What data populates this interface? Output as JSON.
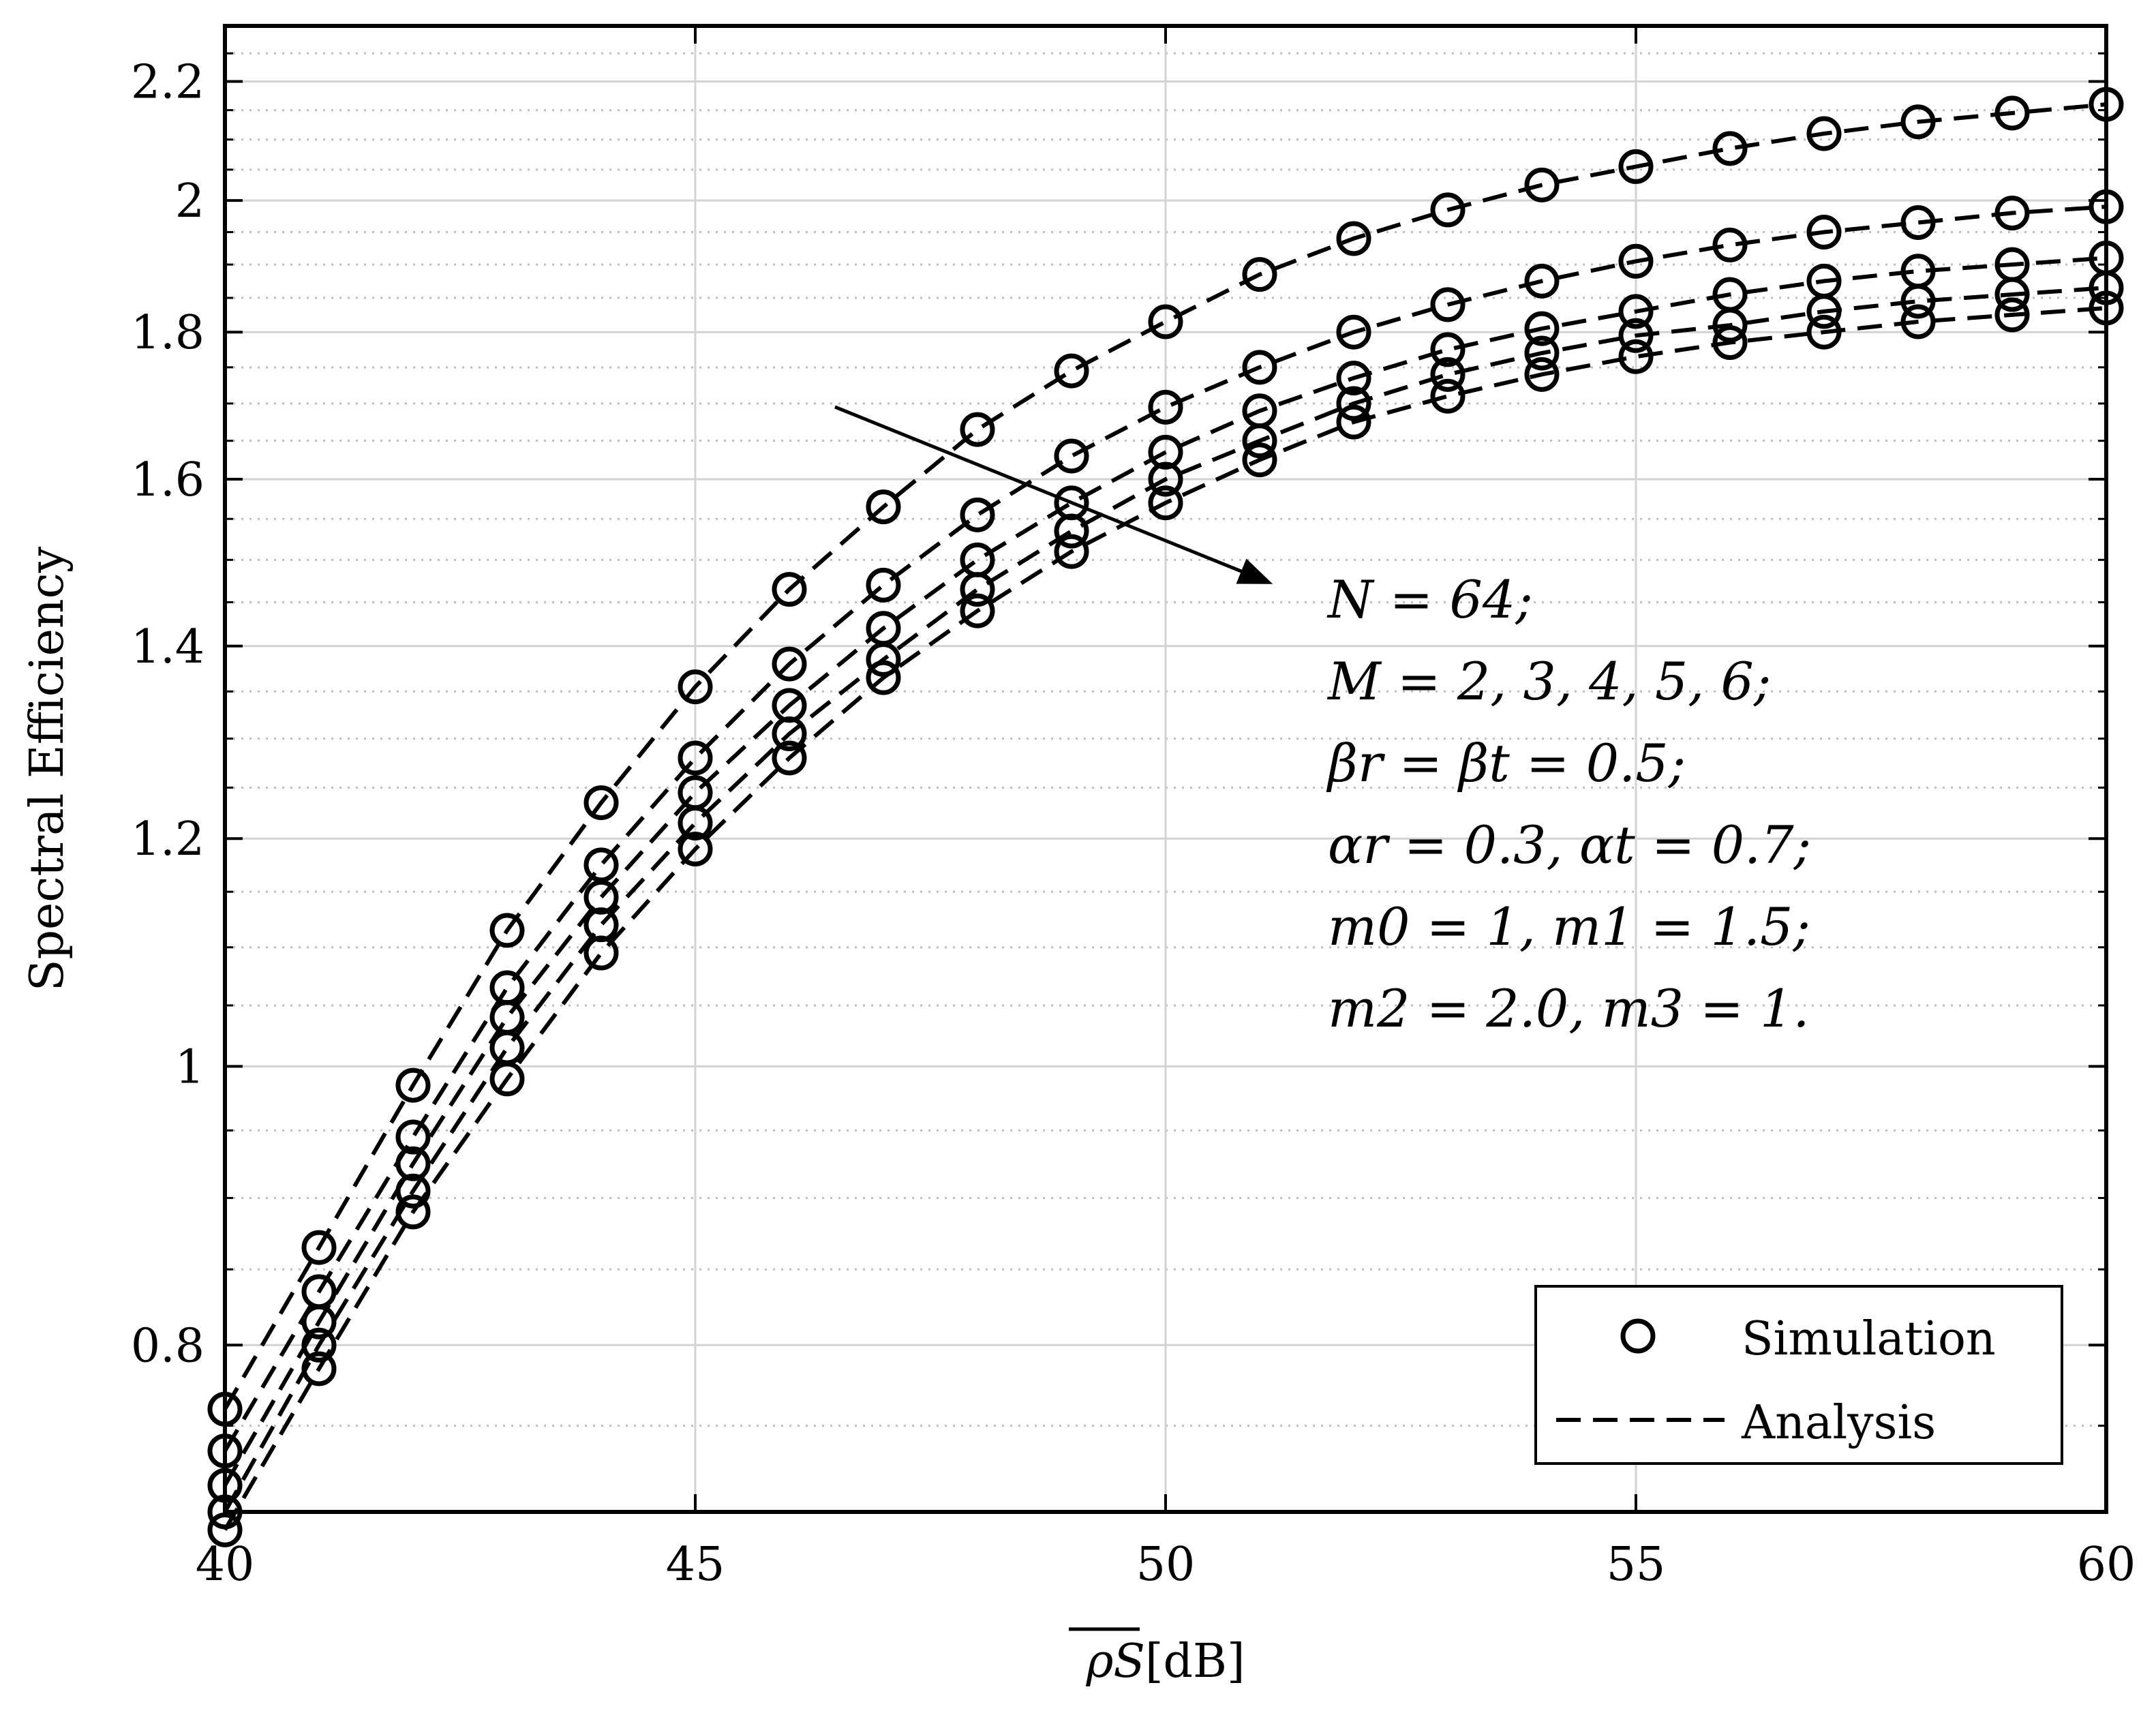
{
  "chart_data": {
    "type": "line",
    "xlabel_symbol": "ρS",
    "xlabel_unit": "[dB]",
    "ylabel": "Spectral Efficiency",
    "xlim": [
      40,
      60
    ],
    "ylim": [
      0.7,
      2.3
    ],
    "y_scale": "log",
    "grid": true,
    "xticks": [
      40,
      45,
      50,
      55,
      60
    ],
    "xtick_labels": [
      "40",
      "45",
      "50",
      "55",
      "60"
    ],
    "yticks": [
      0.8,
      1.0,
      1.2,
      1.4,
      1.6,
      1.8,
      2.0,
      2.2
    ],
    "ytick_labels": [
      "0.8",
      "1",
      "1.2",
      "1.4",
      "1.6",
      "1.8",
      "2",
      "2.2"
    ],
    "x": [
      40,
      41,
      42,
      43,
      44,
      45,
      46,
      47,
      48,
      49,
      50,
      51,
      52,
      53,
      54,
      55,
      56,
      57,
      58,
      59,
      60
    ],
    "series": [
      {
        "name": "M = 2",
        "values": [
          0.76,
          0.865,
          0.985,
          1.115,
          1.235,
          1.355,
          1.465,
          1.565,
          1.665,
          1.745,
          1.815,
          1.885,
          1.94,
          1.985,
          2.025,
          2.055,
          2.085,
          2.11,
          2.13,
          2.145,
          2.16
        ]
      },
      {
        "name": "M = 3",
        "values": [
          0.735,
          0.835,
          0.945,
          1.065,
          1.175,
          1.28,
          1.38,
          1.47,
          1.555,
          1.63,
          1.695,
          1.75,
          1.8,
          1.84,
          1.875,
          1.905,
          1.93,
          1.95,
          1.965,
          1.98,
          1.99
        ]
      },
      {
        "name": "M = 4",
        "values": [
          0.715,
          0.815,
          0.925,
          1.04,
          1.145,
          1.245,
          1.335,
          1.42,
          1.5,
          1.57,
          1.635,
          1.69,
          1.735,
          1.775,
          1.805,
          1.83,
          1.855,
          1.875,
          1.89,
          1.9,
          1.91
        ]
      },
      {
        "name": "M = 5",
        "values": [
          0.7,
          0.8,
          0.905,
          1.015,
          1.12,
          1.215,
          1.305,
          1.385,
          1.465,
          1.535,
          1.6,
          1.65,
          1.7,
          1.74,
          1.77,
          1.795,
          1.81,
          1.83,
          1.845,
          1.855,
          1.865
        ]
      },
      {
        "name": "M = 6",
        "values": [
          0.69,
          0.785,
          0.89,
          0.99,
          1.095,
          1.19,
          1.28,
          1.365,
          1.44,
          1.51,
          1.57,
          1.625,
          1.675,
          1.71,
          1.74,
          1.765,
          1.785,
          1.8,
          1.815,
          1.825,
          1.835
        ]
      }
    ],
    "legend": {
      "placement": "bottom-right",
      "entries": [
        {
          "label": "Simulation",
          "style": "circle-marker"
        },
        {
          "label": "Analysis",
          "style": "dashed-line"
        }
      ]
    },
    "annotation": {
      "arrow": "diagonal, pointing down-right across the curves",
      "lines": [
        "N = 64;",
        "M = 2, 3, 4, 5, 6;",
        "βr = βt = 0.5;",
        "αr = 0.3, αt = 0.7;",
        "m0 = 1, m1 = 1.5;",
        "m2 = 2.0, m3 = 1."
      ]
    }
  }
}
